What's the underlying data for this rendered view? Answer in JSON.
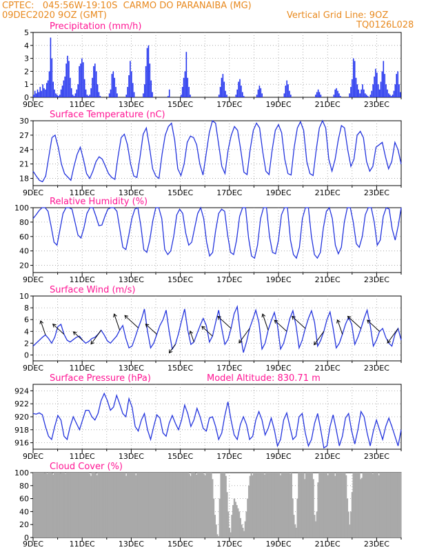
{
  "header": {
    "line1": "CPTEC:   045:56W-19:10S  CARMO DO PARANAIBA (MG)",
    "line2": "09DEC2020 9OZ (GMT)",
    "grid_note": "Vertical Grid Line: 9OZ",
    "code": "TQ0126L028"
  },
  "x_ticks": [
    "9DEC",
    "11DEC",
    "13DEC",
    "15DEC",
    "17DEC",
    "19DEC",
    "21DEC",
    "23DEC"
  ],
  "colors": {
    "title": "#ff1493",
    "line": "#2233dd",
    "bar": "#2233ee",
    "cloud": "#a9a9a9",
    "header": "#e8891e"
  },
  "chart_data": [
    {
      "id": "precip",
      "type": "bar",
      "title": "Precipitation (mm/h)",
      "ylim": [
        0,
        5
      ],
      "yticks": [
        "0",
        "1",
        "2",
        "3",
        "4",
        "5"
      ],
      "x_range_days": [
        0,
        15
      ],
      "values": [
        0.2,
        0.5,
        0.3,
        0.6,
        0.4,
        0.8,
        0.5,
        1.0,
        0.7,
        0.6,
        1.1,
        1.3,
        2.0,
        4.6,
        3.0,
        1.2,
        0.6,
        0.3,
        0.2,
        0.1,
        0.2,
        0.6,
        0.9,
        1.3,
        1.6,
        2.6,
        3.2,
        2.8,
        1.5,
        0.7,
        0.2,
        0.1,
        0.3,
        0.6,
        1.0,
        2.4,
        2.6,
        3.0,
        2.7,
        1.4,
        0.6,
        0.2,
        0.1,
        0.2,
        0.7,
        1.5,
        2.4,
        2.6,
        2.0,
        1.0,
        0.4,
        0.1,
        0,
        0,
        0,
        0,
        0,
        0,
        0.3,
        0.6,
        1.8,
        2.0,
        1.5,
        0.8,
        0.3,
        0,
        0,
        0,
        0,
        0,
        0,
        0.2,
        0.8,
        1.7,
        2.8,
        2.0,
        1.1,
        0.4,
        0,
        0,
        0,
        0,
        0,
        0,
        0.3,
        1.0,
        2.4,
        3.8,
        4.0,
        2.6,
        1.3,
        0.4,
        0,
        0,
        0,
        0,
        0,
        0,
        0,
        0,
        0,
        0,
        0,
        0.1,
        0.6,
        0,
        0,
        0,
        0,
        0,
        0,
        0,
        0,
        0.2,
        0.8,
        1.5,
        2.0,
        3.5,
        1.5,
        0.8,
        0.2,
        0,
        0,
        0,
        0,
        0,
        0,
        0,
        0,
        0,
        0,
        0,
        0,
        0,
        0,
        0,
        0,
        0,
        0,
        0,
        0,
        0,
        0.2,
        0.8,
        1.5,
        1.8,
        1.2,
        0.5,
        0.2,
        0,
        0,
        0,
        0,
        0,
        0,
        0.2,
        0.6,
        1.2,
        1.4,
        0.9,
        0.4,
        0.1,
        0,
        0,
        0,
        0,
        0,
        0,
        0,
        0,
        0,
        0.2,
        0.6,
        0.9,
        0.7,
        0.3,
        0,
        0,
        0,
        0,
        0,
        0,
        0,
        0,
        0,
        0,
        0,
        0,
        0,
        0,
        0,
        0,
        0.3,
        0.9,
        1.3,
        1.0,
        0.5,
        0.2,
        0,
        0,
        0,
        0,
        0,
        0,
        0,
        0,
        0,
        0,
        0,
        0,
        0,
        0,
        0,
        0,
        0,
        0,
        0.2,
        0.4,
        0.6,
        0.4,
        0.2,
        0,
        0,
        0,
        0,
        0,
        0,
        0,
        0,
        0,
        0.2,
        0.6,
        0.7,
        0.5,
        0.3,
        0.1,
        0,
        0,
        0,
        0,
        0,
        0,
        0.3,
        0.8,
        1.4,
        3.0,
        2.8,
        1.5,
        1.0,
        0.6,
        0.3,
        0.6,
        1.0,
        0.6,
        0.3,
        0.2,
        0.1,
        0,
        0.2,
        0.5,
        1.0,
        1.6,
        2.2,
        1.9,
        1.0,
        0.6,
        1.2,
        2.0,
        2.8,
        1.8,
        1.0,
        0.6,
        0.3,
        0.2,
        0.1,
        0.2,
        0.5,
        1.0,
        1.8,
        2.0,
        1.0,
        0.4
      ]
    },
    {
      "id": "temp",
      "type": "line",
      "title": "Surface Temperature (nC)",
      "ylim": [
        16.5,
        30
      ],
      "yticks": [
        "18",
        "21",
        "24",
        "27",
        "30"
      ],
      "ytick_values": [
        18,
        21,
        24,
        27,
        30
      ],
      "x_range_days": [
        0,
        15
      ],
      "values": [
        19.5,
        18.5,
        17.6,
        17.3,
        18.5,
        22.5,
        26.5,
        27.0,
        24.5,
        21.0,
        19.0,
        18.3,
        17.6,
        20.5,
        23.0,
        24.5,
        22.0,
        19.0,
        18.0,
        19.5,
        21.5,
        22.5,
        22.0,
        20.5,
        19.0,
        18.2,
        17.8,
        22.5,
        26.5,
        27.2,
        25.0,
        21.0,
        18.5,
        18.2,
        22.5,
        27.2,
        28.5,
        24.5,
        20.0,
        18.5,
        18.0,
        23.0,
        27.0,
        28.8,
        29.5,
        26.0,
        20.0,
        18.6,
        21.0,
        25.5,
        26.8,
        26.5,
        25.0,
        21.0,
        18.7,
        23.0,
        27.5,
        30.0,
        29.5,
        25.0,
        20.5,
        19.0,
        24.0,
        27.0,
        28.8,
        28.0,
        24.0,
        19.3,
        18.8,
        24.0,
        28.0,
        29.5,
        28.5,
        23.5,
        19.5,
        18.8,
        24.0,
        28.0,
        29.2,
        27.5,
        22.0,
        19.0,
        18.7,
        24.5,
        28.5,
        29.8,
        28.0,
        21.5,
        19.0,
        18.6,
        24.0,
        28.5,
        30.0,
        28.5,
        22.0,
        19.5,
        22.0,
        26.0,
        29.0,
        28.5,
        24.0,
        20.5,
        22.0,
        27.0,
        27.8,
        26.5,
        21.5,
        19.5,
        20.5,
        24.5,
        25.0,
        25.5,
        22.5,
        20.0,
        21.5,
        25.5,
        24.0,
        21.0
      ]
    },
    {
      "id": "rh",
      "type": "line",
      "title": "Relative Humidity (%)",
      "ylim": [
        10,
        100
      ],
      "yticks": [
        "20",
        "40",
        "60",
        "80",
        "100"
      ],
      "ytick_values": [
        20,
        40,
        60,
        80,
        100
      ],
      "x_range_days": [
        0,
        15
      ],
      "values": [
        85,
        90,
        96,
        100,
        100,
        95,
        75,
        52,
        48,
        70,
        92,
        100,
        100,
        98,
        80,
        62,
        58,
        72,
        92,
        100,
        100,
        88,
        75,
        76,
        88,
        98,
        100,
        100,
        95,
        70,
        45,
        42,
        62,
        85,
        98,
        100,
        75,
        42,
        38,
        55,
        82,
        100,
        100,
        85,
        42,
        35,
        40,
        60,
        90,
        98,
        92,
        65,
        48,
        52,
        72,
        92,
        100,
        85,
        52,
        33,
        38,
        68,
        92,
        98,
        95,
        62,
        38,
        35,
        55,
        88,
        100,
        100,
        58,
        33,
        30,
        48,
        85,
        100,
        100,
        60,
        38,
        36,
        55,
        90,
        100,
        100,
        55,
        35,
        30,
        45,
        85,
        100,
        100,
        60,
        35,
        30,
        38,
        72,
        95,
        100,
        85,
        48,
        36,
        45,
        80,
        100,
        100,
        80,
        50,
        45,
        60,
        90,
        100,
        100,
        80,
        48,
        55,
        88,
        100,
        98,
        70,
        55,
        75,
        100
      ]
    },
    {
      "id": "wind",
      "type": "line",
      "title": "Surface Wind (m/s)",
      "ylim": [
        -1,
        10
      ],
      "yticks": [
        "0",
        "2",
        "4",
        "6",
        "8",
        "10"
      ],
      "ytick_values": [
        0,
        2,
        4,
        6,
        8,
        10
      ],
      "x_range_days": [
        0,
        15
      ],
      "values": [
        1.5,
        2.0,
        2.5,
        3.0,
        3.4,
        2.8,
        2.0,
        3.0,
        4.8,
        5.2,
        3.5,
        2.5,
        2.2,
        2.6,
        3.0,
        3.2,
        2.5,
        2.0,
        2.3,
        2.8,
        3.0,
        3.5,
        4.2,
        3.4,
        2.4,
        2.0,
        2.6,
        3.2,
        4.2,
        5.0,
        2.8,
        1.2,
        1.5,
        3.0,
        4.6,
        6.0,
        7.8,
        4.0,
        1.2,
        2.0,
        3.5,
        5.0,
        6.0,
        7.6,
        4.0,
        1.0,
        1.8,
        3.6,
        5.8,
        7.8,
        4.2,
        1.8,
        2.2,
        3.6,
        5.0,
        6.2,
        5.0,
        2.2,
        3.2,
        5.5,
        7.6,
        4.5,
        1.8,
        2.6,
        4.5,
        7.0,
        8.2,
        3.5,
        0.4,
        2.2,
        4.5,
        6.0,
        7.6,
        5.5,
        1.0,
        2.0,
        4.2,
        5.8,
        7.2,
        5.0,
        1.0,
        2.0,
        4.0,
        6.2,
        7.5,
        5.0,
        1.2,
        2.5,
        4.5,
        6.2,
        7.5,
        5.5,
        1.5,
        2.5,
        4.0,
        6.0,
        7.3,
        4.5,
        1.2,
        2.0,
        3.5,
        5.2,
        6.4,
        5.2,
        1.8,
        3.0,
        4.5,
        6.2,
        7.6,
        5.0,
        1.5,
        2.5,
        4.0,
        4.5,
        3.0,
        2.0,
        1.5,
        3.5,
        4.5,
        2.5
      ],
      "arrows_note": "wind direction vectors drawn along the series"
    },
    {
      "id": "pres",
      "type": "line",
      "title": "Surface Pressure (hPa)",
      "annotation": "Model Altitude: 830.71 m",
      "ylim": [
        915,
        925
      ],
      "yticks": [
        "916",
        "918",
        "920",
        "922",
        "924"
      ],
      "ytick_values": [
        916,
        918,
        920,
        922,
        924
      ],
      "x_range_days": [
        0,
        15
      ],
      "values": [
        920.5,
        920.4,
        920.6,
        920.3,
        918.5,
        917.0,
        916.5,
        918.5,
        920.2,
        919.5,
        917.0,
        916.5,
        918.5,
        920.0,
        919.0,
        918.0,
        919.5,
        921.0,
        921.0,
        920.0,
        919.5,
        920.5,
        922.5,
        923.6,
        922.5,
        921.0,
        921.5,
        923.3,
        922.0,
        920.5,
        920.0,
        922.8,
        921.5,
        918.5,
        917.8,
        919.5,
        920.5,
        918.0,
        916.5,
        918.5,
        920.3,
        919.8,
        917.5,
        917.0,
        919.0,
        920.2,
        919.0,
        918.0,
        919.5,
        921.8,
        920.5,
        918.5,
        919.5,
        921.3,
        920.0,
        918.2,
        917.8,
        919.8,
        920.0,
        918.5,
        916.5,
        917.5,
        920.2,
        922.3,
        919.5,
        917.2,
        916.5,
        918.8,
        920.0,
        918.8,
        916.5,
        917.0,
        919.5,
        920.8,
        919.5,
        917.2,
        918.2,
        919.8,
        918.0,
        915.5,
        916.5,
        919.5,
        920.6,
        918.5,
        916.5,
        917.0,
        920.0,
        920.5,
        917.5,
        915.5,
        916.5,
        919.0,
        920.5,
        918.0,
        915.2,
        915.5,
        918.5,
        920.3,
        918.0,
        915.5,
        917.0,
        919.8,
        920.5,
        917.8,
        915.8,
        918.0,
        920.8,
        920.0,
        917.5,
        915.5,
        917.8,
        919.5,
        918.0,
        916.5,
        918.5,
        919.8,
        918.5,
        917.0,
        915.5,
        918.0
      ]
    },
    {
      "id": "cloud",
      "type": "bar",
      "title": "Cloud Cover (%)",
      "ylim": [
        0,
        100
      ],
      "yticks": [
        "0",
        "20",
        "40",
        "60",
        "80",
        "100"
      ],
      "x_range_days": [
        0,
        15
      ],
      "values": [
        100,
        100,
        100,
        100,
        100,
        100,
        100,
        100,
        100,
        99,
        100,
        98,
        100,
        100,
        100,
        99,
        97,
        100,
        100,
        100,
        100,
        100,
        99,
        100,
        100,
        100,
        98,
        100,
        100,
        100,
        100,
        100,
        100,
        100,
        100,
        100,
        100,
        100,
        100,
        100,
        100,
        100,
        100,
        100,
        100,
        100,
        98,
        95,
        100,
        100,
        100,
        99,
        96,
        100,
        100,
        100,
        100,
        100,
        100,
        100,
        100,
        100,
        100,
        100,
        100,
        100,
        100,
        100,
        100,
        100,
        100,
        100,
        100,
        100,
        100,
        100,
        95,
        100,
        100,
        100,
        100,
        100,
        100,
        100,
        96,
        100,
        100,
        100,
        100,
        100,
        100,
        100,
        100,
        100,
        100,
        100,
        100,
        100,
        100,
        100,
        100,
        100,
        100,
        100,
        100,
        100,
        100,
        100,
        100,
        100,
        100,
        100,
        100,
        100,
        100,
        100,
        100,
        100,
        100,
        100,
        100,
        100,
        100,
        100,
        100,
        100,
        100,
        100,
        98,
        95,
        100,
        100,
        100,
        99,
        97,
        100,
        100,
        100,
        100,
        100,
        98,
        96,
        100,
        100,
        100,
        100,
        100,
        90,
        60,
        35,
        20,
        5,
        2,
        60,
        100,
        100,
        100,
        100,
        95,
        70,
        40,
        15,
        8,
        35,
        50,
        60,
        55,
        50,
        45,
        40,
        30,
        20,
        15,
        10,
        25,
        40,
        60,
        80,
        95,
        100,
        96,
        100,
        100,
        100,
        100,
        100,
        100,
        100,
        100,
        100,
        97,
        100,
        100,
        100,
        100,
        100,
        100,
        100,
        100,
        100,
        100,
        100,
        100,
        96,
        100,
        100,
        100,
        100,
        100,
        100,
        100,
        98,
        100,
        60,
        35,
        20,
        15,
        60,
        100,
        100,
        100,
        100,
        100,
        90,
        100,
        100,
        100,
        100,
        100,
        100,
        90,
        35,
        25,
        40,
        85,
        100,
        100,
        100,
        100,
        100,
        100,
        100,
        96,
        100,
        100,
        100,
        100,
        100,
        95,
        100,
        100,
        100,
        100,
        100,
        100,
        100,
        100,
        96,
        60,
        40,
        20,
        40,
        70,
        100,
        100,
        100,
        100,
        100,
        100,
        90,
        92,
        100,
        100,
        100,
        100,
        100,
        100,
        100,
        100,
        98,
        100,
        100,
        100,
        100,
        96,
        100,
        100,
        100,
        100,
        100,
        100,
        100,
        100,
        100,
        100,
        100,
        100,
        100,
        100,
        100,
        100,
        100,
        100
      ]
    }
  ]
}
